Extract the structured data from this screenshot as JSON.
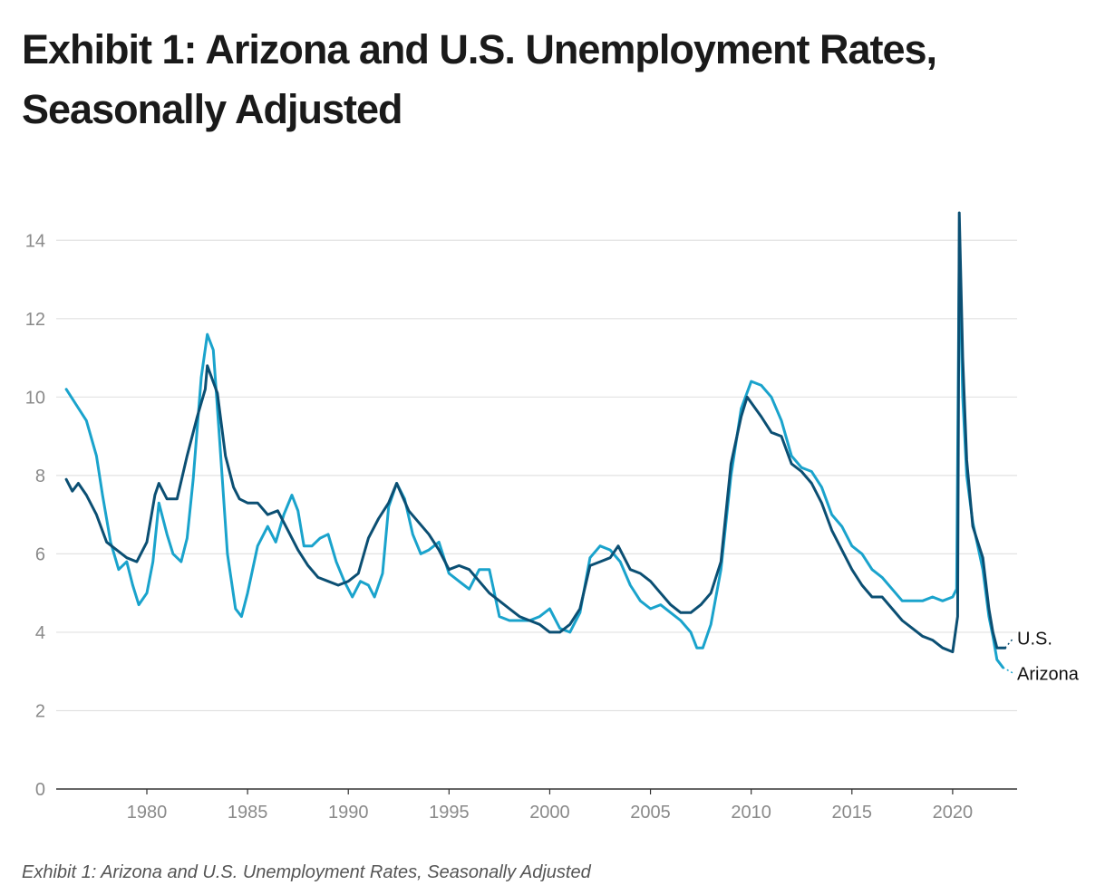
{
  "title": "Exhibit 1: Arizona and U.S. Unemployment Rates, Seasonally Adjusted",
  "caption": "Exhibit 1: Arizona and U.S. Unemployment Rates, Seasonally Adjusted",
  "colors": {
    "us": "#0b4f73",
    "arizona": "#1aa3cc",
    "grid": "#e2e2e2",
    "axis": "#333333"
  },
  "chart_data": {
    "type": "line",
    "xlim": [
      1975.5,
      2023.2
    ],
    "ylim": [
      0,
      15
    ],
    "xticks": [
      1980,
      1985,
      1990,
      1995,
      2000,
      2005,
      2010,
      2015,
      2020
    ],
    "yticks": [
      0,
      2,
      4,
      6,
      8,
      10,
      12,
      14
    ],
    "grid": true,
    "legend": "direct labels at line ends",
    "series": [
      {
        "name": "U.S.",
        "color": "#0b4f73",
        "points": [
          [
            1976.0,
            7.9
          ],
          [
            1976.3,
            7.6
          ],
          [
            1976.6,
            7.8
          ],
          [
            1977.0,
            7.5
          ],
          [
            1977.5,
            7.0
          ],
          [
            1978.0,
            6.3
          ],
          [
            1978.5,
            6.1
          ],
          [
            1979.0,
            5.9
          ],
          [
            1979.5,
            5.8
          ],
          [
            1980.0,
            6.3
          ],
          [
            1980.4,
            7.5
          ],
          [
            1980.6,
            7.8
          ],
          [
            1981.0,
            7.4
          ],
          [
            1981.5,
            7.4
          ],
          [
            1982.0,
            8.5
          ],
          [
            1982.5,
            9.5
          ],
          [
            1982.9,
            10.2
          ],
          [
            1983.0,
            10.8
          ],
          [
            1983.5,
            10.1
          ],
          [
            1983.9,
            8.5
          ],
          [
            1984.3,
            7.7
          ],
          [
            1984.6,
            7.4
          ],
          [
            1985.0,
            7.3
          ],
          [
            1985.5,
            7.3
          ],
          [
            1986.0,
            7.0
          ],
          [
            1986.5,
            7.1
          ],
          [
            1987.0,
            6.6
          ],
          [
            1987.5,
            6.1
          ],
          [
            1988.0,
            5.7
          ],
          [
            1988.5,
            5.4
          ],
          [
            1989.0,
            5.3
          ],
          [
            1989.5,
            5.2
          ],
          [
            1990.0,
            5.3
          ],
          [
            1990.5,
            5.5
          ],
          [
            1991.0,
            6.4
          ],
          [
            1991.5,
            6.9
          ],
          [
            1992.0,
            7.3
          ],
          [
            1992.4,
            7.8
          ],
          [
            1993.0,
            7.1
          ],
          [
            1993.5,
            6.8
          ],
          [
            1994.0,
            6.5
          ],
          [
            1994.5,
            6.1
          ],
          [
            1995.0,
            5.6
          ],
          [
            1995.5,
            5.7
          ],
          [
            1996.0,
            5.6
          ],
          [
            1996.5,
            5.3
          ],
          [
            1997.0,
            5.0
          ],
          [
            1997.5,
            4.8
          ],
          [
            1998.0,
            4.6
          ],
          [
            1998.5,
            4.4
          ],
          [
            1999.0,
            4.3
          ],
          [
            1999.5,
            4.2
          ],
          [
            2000.0,
            4.0
          ],
          [
            2000.5,
            4.0
          ],
          [
            2001.0,
            4.2
          ],
          [
            2001.5,
            4.6
          ],
          [
            2002.0,
            5.7
          ],
          [
            2002.5,
            5.8
          ],
          [
            2003.0,
            5.9
          ],
          [
            2003.4,
            6.2
          ],
          [
            2004.0,
            5.6
          ],
          [
            2004.5,
            5.5
          ],
          [
            2005.0,
            5.3
          ],
          [
            2005.5,
            5.0
          ],
          [
            2006.0,
            4.7
          ],
          [
            2006.5,
            4.5
          ],
          [
            2007.0,
            4.5
          ],
          [
            2007.5,
            4.7
          ],
          [
            2008.0,
            5.0
          ],
          [
            2008.5,
            5.8
          ],
          [
            2009.0,
            8.3
          ],
          [
            2009.5,
            9.5
          ],
          [
            2009.8,
            10.0
          ],
          [
            2010.5,
            9.5
          ],
          [
            2011.0,
            9.1
          ],
          [
            2011.5,
            9.0
          ],
          [
            2012.0,
            8.3
          ],
          [
            2012.5,
            8.1
          ],
          [
            2013.0,
            7.8
          ],
          [
            2013.5,
            7.3
          ],
          [
            2014.0,
            6.6
          ],
          [
            2014.5,
            6.1
          ],
          [
            2015.0,
            5.6
          ],
          [
            2015.5,
            5.2
          ],
          [
            2016.0,
            4.9
          ],
          [
            2016.5,
            4.9
          ],
          [
            2017.0,
            4.6
          ],
          [
            2017.5,
            4.3
          ],
          [
            2018.0,
            4.1
          ],
          [
            2018.5,
            3.9
          ],
          [
            2019.0,
            3.8
          ],
          [
            2019.5,
            3.6
          ],
          [
            2020.0,
            3.5
          ],
          [
            2020.25,
            4.4
          ],
          [
            2020.33,
            14.7
          ],
          [
            2020.5,
            11.0
          ],
          [
            2020.7,
            8.4
          ],
          [
            2021.0,
            6.7
          ],
          [
            2021.5,
            5.9
          ],
          [
            2021.8,
            4.6
          ],
          [
            2022.0,
            4.0
          ],
          [
            2022.2,
            3.6
          ],
          [
            2022.6,
            3.6
          ]
        ]
      },
      {
        "name": "Arizona",
        "color": "#1aa3cc",
        "points": [
          [
            1976.0,
            10.2
          ],
          [
            1976.5,
            9.8
          ],
          [
            1977.0,
            9.4
          ],
          [
            1977.5,
            8.5
          ],
          [
            1977.8,
            7.5
          ],
          [
            1978.2,
            6.3
          ],
          [
            1978.6,
            5.6
          ],
          [
            1979.0,
            5.8
          ],
          [
            1979.3,
            5.2
          ],
          [
            1979.6,
            4.7
          ],
          [
            1980.0,
            5.0
          ],
          [
            1980.3,
            5.8
          ],
          [
            1980.6,
            7.3
          ],
          [
            1981.0,
            6.5
          ],
          [
            1981.3,
            6.0
          ],
          [
            1981.7,
            5.8
          ],
          [
            1982.0,
            6.4
          ],
          [
            1982.3,
            7.9
          ],
          [
            1982.7,
            10.5
          ],
          [
            1983.0,
            11.6
          ],
          [
            1983.3,
            11.2
          ],
          [
            1983.6,
            9.0
          ],
          [
            1984.0,
            6.0
          ],
          [
            1984.4,
            4.6
          ],
          [
            1984.7,
            4.4
          ],
          [
            1985.0,
            5.0
          ],
          [
            1985.5,
            6.2
          ],
          [
            1986.0,
            6.7
          ],
          [
            1986.4,
            6.3
          ],
          [
            1986.8,
            7.0
          ],
          [
            1987.2,
            7.5
          ],
          [
            1987.5,
            7.1
          ],
          [
            1987.8,
            6.2
          ],
          [
            1988.2,
            6.2
          ],
          [
            1988.6,
            6.4
          ],
          [
            1989.0,
            6.5
          ],
          [
            1989.4,
            5.8
          ],
          [
            1989.8,
            5.3
          ],
          [
            1990.2,
            4.9
          ],
          [
            1990.6,
            5.3
          ],
          [
            1991.0,
            5.2
          ],
          [
            1991.3,
            4.9
          ],
          [
            1991.7,
            5.5
          ],
          [
            1992.0,
            7.2
          ],
          [
            1992.4,
            7.8
          ],
          [
            1992.8,
            7.4
          ],
          [
            1993.2,
            6.5
          ],
          [
            1993.6,
            6.0
          ],
          [
            1994.0,
            6.1
          ],
          [
            1994.5,
            6.3
          ],
          [
            1995.0,
            5.5
          ],
          [
            1995.5,
            5.3
          ],
          [
            1996.0,
            5.1
          ],
          [
            1996.5,
            5.6
          ],
          [
            1997.0,
            5.6
          ],
          [
            1997.5,
            4.4
          ],
          [
            1998.0,
            4.3
          ],
          [
            1998.5,
            4.3
          ],
          [
            1999.0,
            4.3
          ],
          [
            1999.5,
            4.4
          ],
          [
            2000.0,
            4.6
          ],
          [
            2000.5,
            4.1
          ],
          [
            2001.0,
            4.0
          ],
          [
            2001.5,
            4.5
          ],
          [
            2002.0,
            5.9
          ],
          [
            2002.5,
            6.2
          ],
          [
            2003.0,
            6.1
          ],
          [
            2003.5,
            5.8
          ],
          [
            2004.0,
            5.2
          ],
          [
            2004.5,
            4.8
          ],
          [
            2005.0,
            4.6
          ],
          [
            2005.5,
            4.7
          ],
          [
            2006.0,
            4.5
          ],
          [
            2006.5,
            4.3
          ],
          [
            2007.0,
            4.0
          ],
          [
            2007.3,
            3.6
          ],
          [
            2007.6,
            3.6
          ],
          [
            2008.0,
            4.2
          ],
          [
            2008.5,
            5.6
          ],
          [
            2009.0,
            8.0
          ],
          [
            2009.5,
            9.7
          ],
          [
            2010.0,
            10.4
          ],
          [
            2010.5,
            10.3
          ],
          [
            2011.0,
            10.0
          ],
          [
            2011.5,
            9.4
          ],
          [
            2012.0,
            8.5
          ],
          [
            2012.5,
            8.2
          ],
          [
            2013.0,
            8.1
          ],
          [
            2013.5,
            7.7
          ],
          [
            2014.0,
            7.0
          ],
          [
            2014.5,
            6.7
          ],
          [
            2015.0,
            6.2
          ],
          [
            2015.5,
            6.0
          ],
          [
            2016.0,
            5.6
          ],
          [
            2016.5,
            5.4
          ],
          [
            2017.0,
            5.1
          ],
          [
            2017.5,
            4.8
          ],
          [
            2018.0,
            4.8
          ],
          [
            2018.5,
            4.8
          ],
          [
            2019.0,
            4.9
          ],
          [
            2019.5,
            4.8
          ],
          [
            2020.0,
            4.9
          ],
          [
            2020.2,
            5.1
          ],
          [
            2020.33,
            13.8
          ],
          [
            2020.5,
            10.0
          ],
          [
            2020.7,
            8.0
          ],
          [
            2021.0,
            6.8
          ],
          [
            2021.5,
            5.6
          ],
          [
            2021.8,
            4.4
          ],
          [
            2022.0,
            3.9
          ],
          [
            2022.2,
            3.3
          ],
          [
            2022.5,
            3.1
          ]
        ]
      }
    ],
    "end_labels": [
      {
        "series": "U.S.",
        "text": "U.S.",
        "anchor": [
          2022.6,
          3.6
        ],
        "label_y": 3.85
      },
      {
        "series": "Arizona",
        "text": "Arizona",
        "anchor": [
          2022.5,
          3.1
        ],
        "label_y": 2.95
      }
    ]
  }
}
